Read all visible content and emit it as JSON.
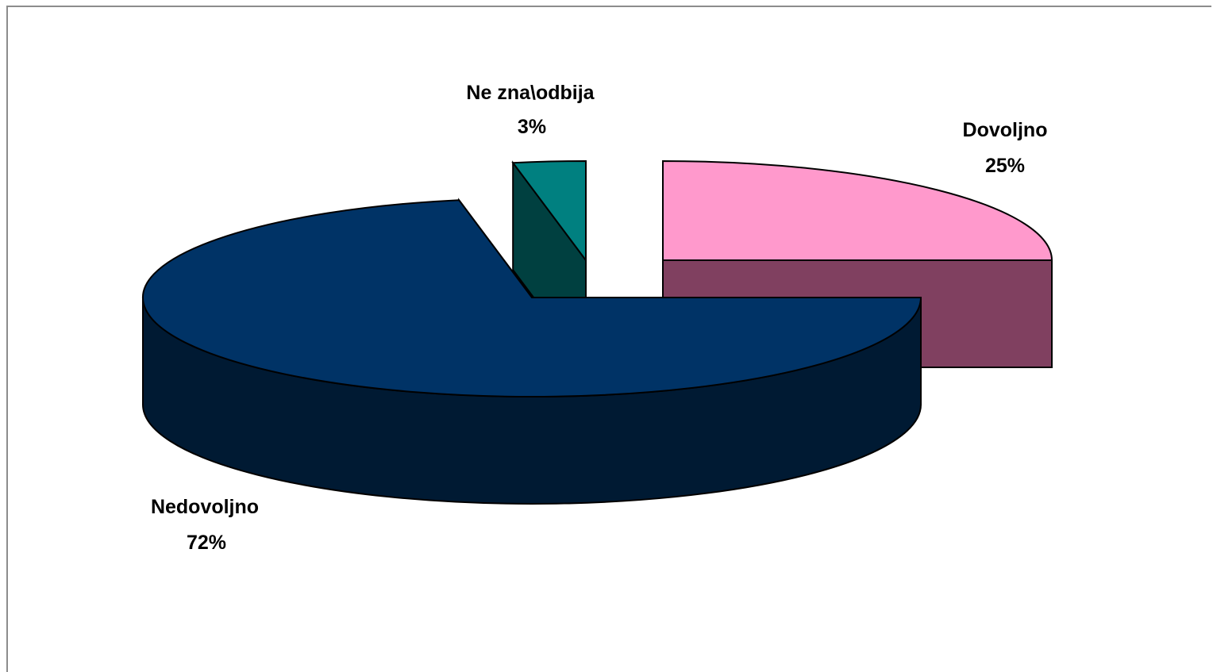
{
  "chart_data": {
    "type": "pie",
    "variant": "3d-exploded",
    "title": "",
    "slices": [
      {
        "label": "Nedovoljno",
        "value": 72,
        "value_label": "72%",
        "top_color": "#003366",
        "side_color": "#001a33"
      },
      {
        "label": "Ne zna\\odbija",
        "value": 3,
        "value_label": "3%",
        "top_color": "#008080",
        "side_color": "#004040"
      },
      {
        "label": "Dovoljno",
        "value": 25,
        "value_label": "25%",
        "top_color": "#ff99cc",
        "side_color": "#804060"
      }
    ]
  }
}
